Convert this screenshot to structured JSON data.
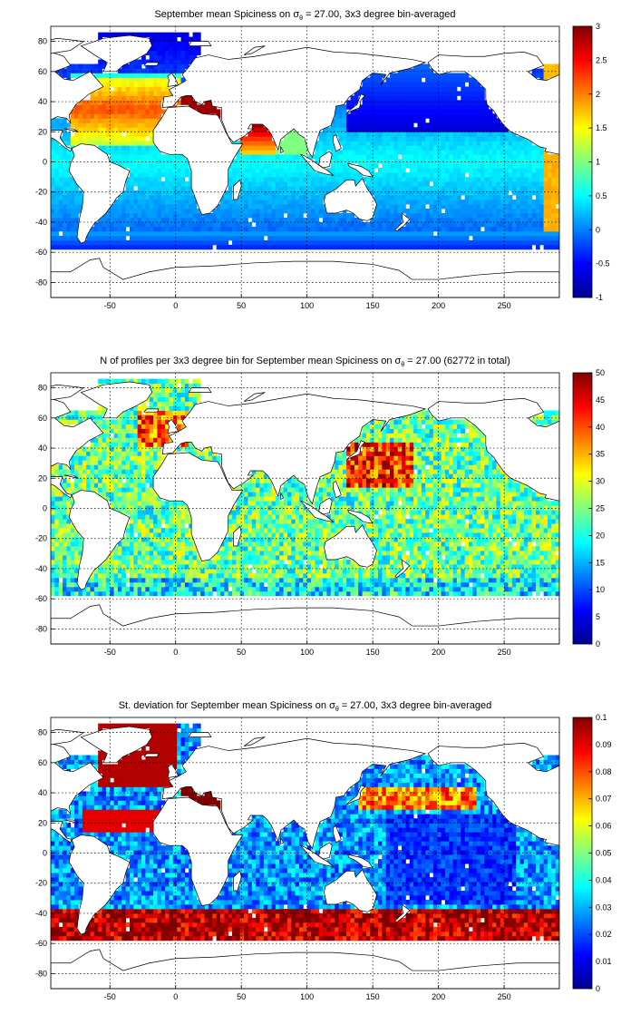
{
  "chart_data": [
    {
      "type": "heatmap",
      "title": "September mean Spiciness on σθ = 27.00, 3x3 degree bin-averaged",
      "title_parts": [
        "September mean Spiciness on σ",
        "θ",
        " = 27.00, 3x3 degree bin-averaged"
      ],
      "x_ticks": [
        "-50",
        "0",
        "50",
        "100",
        "150",
        "200",
        "250"
      ],
      "y_ticks": [
        "80",
        "60",
        "40",
        "20",
        "0",
        "-20",
        "-40",
        "-60",
        "-80"
      ],
      "xlim": [
        -95,
        292
      ],
      "ylim": [
        -90,
        90
      ],
      "grid": true,
      "colorbar": {
        "ticks": [
          "3",
          "2.5",
          "2",
          "1.5",
          "1",
          "0.5",
          "0",
          "-0.5",
          "-1"
        ],
        "range": [
          -1,
          3
        ],
        "colormap": "jet"
      }
    },
    {
      "type": "heatmap",
      "title": "N of profiles per 3x3 degree bin for September mean Spiciness on σθ = 27.00 (62772 in total)",
      "title_parts": [
        "N of profiles per 3x3 degree bin for September mean Spiciness on σ",
        "θ",
        " = 27.00 (62772 in total)"
      ],
      "x_ticks": [
        "-50",
        "0",
        "50",
        "100",
        "150",
        "200",
        "250"
      ],
      "y_ticks": [
        "80",
        "60",
        "40",
        "20",
        "0",
        "-20",
        "-40",
        "-60",
        "-80"
      ],
      "xlim": [
        -95,
        292
      ],
      "ylim": [
        -90,
        90
      ],
      "grid": true,
      "colorbar": {
        "ticks": [
          "50",
          "45",
          "40",
          "35",
          "30",
          "25",
          "20",
          "15",
          "10",
          "5",
          "0"
        ],
        "range": [
          0,
          50
        ],
        "colormap": "jet"
      }
    },
    {
      "type": "heatmap",
      "title": "St. deviation for September mean Spiciness on σθ = 27.00, 3x3 degree bin-averaged",
      "title_parts": [
        "St. deviation for September mean Spiciness on σ",
        "θ",
        " = 27.00, 3x3 degree bin-averaged"
      ],
      "x_ticks": [
        "-50",
        "0",
        "50",
        "100",
        "150",
        "200",
        "250"
      ],
      "y_ticks": [
        "80",
        "60",
        "40",
        "20",
        "0",
        "-20",
        "-40",
        "-60",
        "-80"
      ],
      "xlim": [
        -95,
        292
      ],
      "ylim": [
        -90,
        90
      ],
      "grid": true,
      "colorbar": {
        "ticks": [
          "0.1",
          "0.09",
          "0.08",
          "0.07",
          "0.06",
          "0.05",
          "0.04",
          "0.03",
          "0.02",
          "0.01",
          "0"
        ],
        "range": [
          0,
          0.1
        ],
        "colormap": "jet"
      }
    }
  ]
}
